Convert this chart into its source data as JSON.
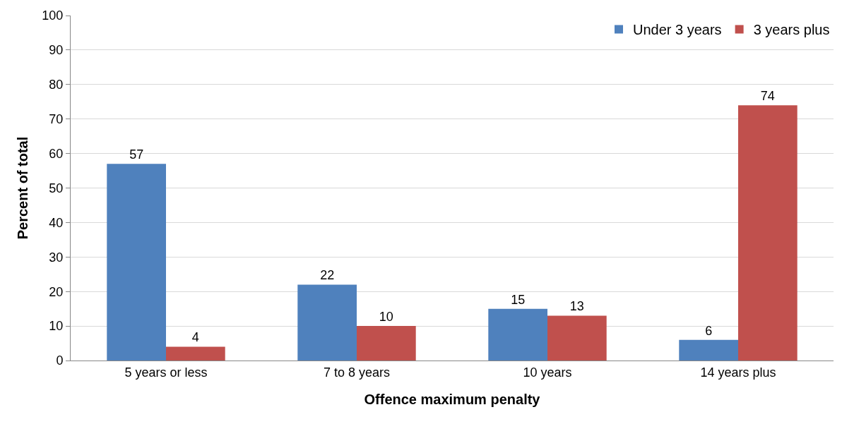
{
  "chart_data": {
    "type": "bar",
    "xlabel": "Offence maximum penalty",
    "ylabel": "Percent of total",
    "categories": [
      "5 years or less",
      "7 to 8 years",
      "10 years",
      "14 years plus"
    ],
    "series": [
      {
        "name": "Under 3 years",
        "color": "#4f81bd",
        "values": [
          57,
          22,
          15,
          6
        ]
      },
      {
        "name": "3 years plus",
        "color": "#c0504d",
        "values": [
          4,
          10,
          13,
          74
        ]
      }
    ],
    "ylim": [
      0,
      100
    ],
    "yticks": [
      0,
      10,
      20,
      30,
      40,
      50,
      60,
      70,
      80,
      90,
      100
    ],
    "grid": "y",
    "legend": "top right",
    "data_labels": true
  }
}
